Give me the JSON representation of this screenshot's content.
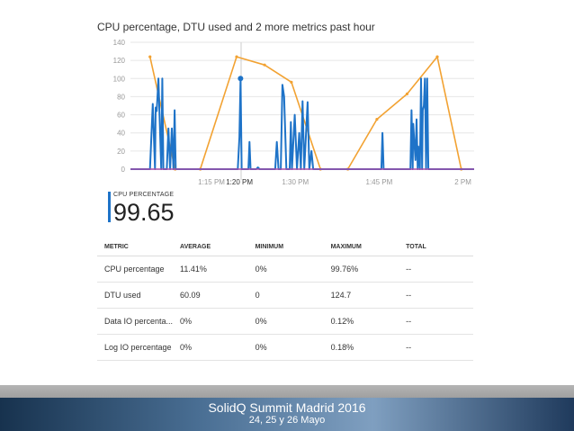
{
  "chart_title": "CPU percentage, DTU used and 2 more metrics past hour",
  "chart_data": {
    "type": "line",
    "title": "CPU percentage, DTU used and 2 more metrics past hour",
    "ylim": [
      0,
      140
    ],
    "y_ticks": [
      "140",
      "120",
      "100",
      "80",
      "60",
      "40",
      "20",
      "0"
    ],
    "x_ticks": [
      "1:15 PM",
      "1:20 PM",
      "1:30 PM",
      "1:45 PM",
      "2 PM"
    ],
    "x_tick_minutes": [
      15,
      20,
      30,
      45,
      60
    ],
    "x_range_minutes": [
      0.5,
      62
    ],
    "grid": true,
    "series": [
      {
        "name": "DTU used",
        "color": "#f2a232",
        "points": [
          [
            4,
            124
          ],
          [
            8.5,
            0
          ],
          [
            13,
            0
          ],
          [
            19.5,
            124
          ],
          [
            24.5,
            115
          ],
          [
            29.3,
            96
          ],
          [
            34.5,
            0
          ],
          [
            39.4,
            0
          ],
          [
            44.6,
            55
          ],
          [
            50,
            83
          ],
          [
            55.4,
            124
          ],
          [
            59.7,
            0
          ]
        ]
      },
      {
        "name": "CPU percentage",
        "color": "#1e73c8",
        "points": [
          [
            0.5,
            0
          ],
          [
            4,
            0
          ],
          [
            4.5,
            72
          ],
          [
            4.9,
            0
          ],
          [
            5,
            68
          ],
          [
            5.2,
            64
          ],
          [
            5.5,
            100
          ],
          [
            6,
            0
          ],
          [
            6.2,
            100
          ],
          [
            6.4,
            0
          ],
          [
            7,
            0
          ],
          [
            7.3,
            45
          ],
          [
            7.6,
            0
          ],
          [
            7.9,
            45
          ],
          [
            8.2,
            0
          ],
          [
            8.4,
            65
          ],
          [
            8.6,
            0
          ],
          [
            19.7,
            0
          ],
          [
            20,
            35
          ],
          [
            20.2,
            100
          ],
          [
            20.4,
            0
          ],
          [
            21.6,
            0
          ],
          [
            21.8,
            30
          ],
          [
            22,
            0
          ],
          [
            23,
            0
          ],
          [
            23.3,
            2
          ],
          [
            23.6,
            0
          ],
          [
            26.4,
            0
          ],
          [
            26.7,
            30
          ],
          [
            27,
            0
          ],
          [
            27.4,
            0
          ],
          [
            27.7,
            93
          ],
          [
            28,
            80
          ],
          [
            28.4,
            0
          ],
          [
            29,
            0
          ],
          [
            29.2,
            52
          ],
          [
            29.4,
            0
          ],
          [
            29.9,
            60
          ],
          [
            30.3,
            0
          ],
          [
            30.7,
            40
          ],
          [
            31,
            0
          ],
          [
            31.3,
            75
          ],
          [
            31.6,
            0
          ],
          [
            32.2,
            74
          ],
          [
            32.5,
            0
          ],
          [
            32.9,
            20
          ],
          [
            33.2,
            0
          ],
          [
            45.4,
            0
          ],
          [
            45.6,
            40
          ],
          [
            45.8,
            0
          ],
          [
            50.6,
            0
          ],
          [
            50.8,
            65
          ],
          [
            51,
            0
          ],
          [
            51.1,
            50
          ],
          [
            51.3,
            30
          ],
          [
            51.5,
            10
          ],
          [
            51.7,
            55
          ],
          [
            51.9,
            0
          ],
          [
            52,
            25
          ],
          [
            52.3,
            0
          ],
          [
            52.5,
            100
          ],
          [
            52.7,
            0
          ],
          [
            52.8,
            65
          ],
          [
            53,
            70
          ],
          [
            53.2,
            100
          ],
          [
            53.4,
            0
          ],
          [
            53.6,
            100
          ],
          [
            53.8,
            0
          ],
          [
            60,
            0
          ],
          [
            62,
            0
          ]
        ]
      },
      {
        "name": "Data IO percentage",
        "color": "#a64ca6",
        "points": [
          [
            0.5,
            0
          ],
          [
            62,
            0
          ]
        ]
      }
    ],
    "cursor_minute": 20.3
  },
  "summary": {
    "label": "CPU PERCENTAGE",
    "value": "99.65",
    "accent_color": "#1e73c8"
  },
  "table": {
    "headers": [
      "METRIC",
      "AVERAGE",
      "MINIMUM",
      "MAXIMUM",
      "TOTAL"
    ],
    "rows": [
      [
        "CPU percentage",
        "11.41%",
        "0%",
        "99.76%",
        "--"
      ],
      [
        "DTU used",
        "60.09",
        "0",
        "124.7",
        "--"
      ],
      [
        "Data IO percenta...",
        "0%",
        "0%",
        "0.12%",
        "--"
      ],
      [
        "Log IO percentage",
        "0%",
        "0%",
        "0.18%",
        "--"
      ]
    ]
  },
  "footer": {
    "title": "SolidQ Summit Madrid 2016",
    "subtitle": "24, 25 y 26 Mayo"
  }
}
